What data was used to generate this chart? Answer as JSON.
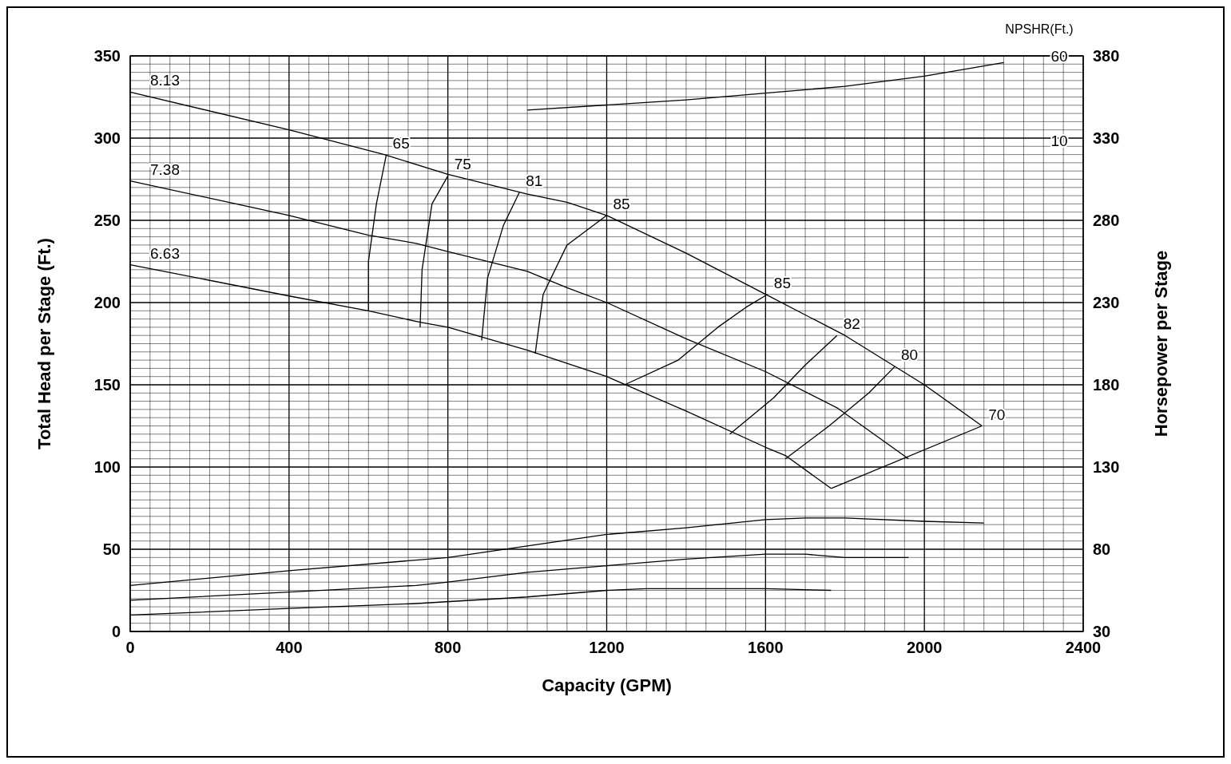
{
  "chart_data": {
    "type": "line",
    "xlabel": "Capacity (GPM)",
    "ylabel": "Total Head per Stage (Ft.)",
    "y2label": "Horsepower per Stage",
    "y3label": "NPSHR(Ft.)",
    "xlim": [
      0,
      2400
    ],
    "xticks": [
      0,
      400,
      800,
      1200,
      1600,
      2000,
      2400
    ],
    "ylim": [
      0,
      350
    ],
    "yticks": [
      0,
      50,
      100,
      150,
      200,
      250,
      300,
      350
    ],
    "y2lim": [
      30,
      380
    ],
    "y2ticks": [
      30,
      80,
      130,
      180,
      230,
      280,
      330,
      380
    ],
    "y3lim": [
      -280,
      60
    ],
    "y3ticks": [
      10,
      60
    ],
    "grid": true,
    "marker": "none",
    "line_style": "solid",
    "series": [
      {
        "name": "8.13",
        "color": "#000000",
        "x": [
          0,
          400,
          640,
          800,
          1000,
          1100,
          1200,
          1400,
          1600,
          1800,
          2000,
          2145
        ],
        "values": [
          328,
          305,
          290,
          278,
          266,
          261,
          253,
          230,
          205,
          180,
          150,
          125
        ]
      },
      {
        "name": "7.38",
        "color": "#000000",
        "x": [
          0,
          400,
          600,
          720,
          800,
          1000,
          1100,
          1200,
          1400,
          1600,
          1780,
          1960
        ],
        "values": [
          274,
          253,
          241,
          236,
          231,
          219,
          209,
          200,
          178,
          158,
          136,
          105
        ]
      },
      {
        "name": "6.63",
        "color": "#000000",
        "x": [
          0,
          400,
          600,
          730,
          800,
          1000,
          1200,
          1400,
          1600,
          1650,
          1765
        ],
        "values": [
          223,
          204,
          195,
          188,
          185,
          171,
          155,
          134,
          112,
          107,
          87
        ]
      },
      {
        "name": "65",
        "color": "#000000",
        "x": [
          600,
          600,
          620,
          645
        ],
        "values": [
          195,
          225,
          260,
          290
        ]
      },
      {
        "name": "75",
        "color": "#000000",
        "x": [
          730,
          735,
          760,
          800
        ],
        "values": [
          185,
          220,
          260,
          277
        ]
      },
      {
        "name": "81",
        "color": "#000000",
        "x": [
          885,
          900,
          940,
          980
        ],
        "values": [
          177,
          215,
          247,
          267
        ]
      },
      {
        "name": "85",
        "color": "#000000",
        "x": [
          1020,
          1040,
          1100,
          1200
        ],
        "values": [
          169,
          205,
          235,
          253
        ]
      },
      {
        "name": "85",
        "color": "#000000",
        "x": [
          1245,
          1380,
          1480,
          1550,
          1605
        ],
        "values": [
          150,
          165,
          185,
          197,
          205
        ]
      },
      {
        "name": "82",
        "color": "#000000",
        "x": [
          1510,
          1620,
          1700,
          1780
        ],
        "values": [
          120,
          142,
          162,
          180
        ]
      },
      {
        "name": "80",
        "color": "#000000",
        "x": [
          1650,
          1760,
          1860,
          1925
        ],
        "values": [
          105,
          125,
          145,
          161
        ]
      },
      {
        "name": "70",
        "color": "#000000",
        "x": [
          1765,
          2145
        ],
        "values": [
          87,
          125
        ]
      },
      {
        "color": "#000000",
        "axis": "y2",
        "x": [
          0,
          400,
          800,
          1000,
          1200,
          1400,
          1600,
          1700,
          1800,
          2000,
          2150
        ],
        "values": [
          58,
          67,
          75,
          82,
          89,
          93,
          98,
          99,
          99,
          97,
          96
        ]
      },
      {
        "color": "#000000",
        "axis": "y2",
        "x": [
          0,
          400,
          720,
          800,
          1000,
          1200,
          1400,
          1600,
          1700,
          1800,
          1960
        ],
        "values": [
          49,
          54,
          58,
          60,
          66,
          70,
          74,
          77,
          77,
          75,
          75
        ]
      },
      {
        "color": "#000000",
        "axis": "y2",
        "x": [
          0,
          400,
          720,
          1000,
          1200,
          1300,
          1600,
          1765
        ],
        "values": [
          40,
          44,
          47,
          51,
          55,
          56,
          56,
          55
        ]
      },
      {
        "color": "#000000",
        "axis": "y3",
        "x": [
          1000,
          1200,
          1400,
          1600,
          1800,
          2000,
          2200
        ],
        "values": [
          28,
          31,
          34,
          38,
          42,
          48,
          56
        ]
      }
    ]
  }
}
